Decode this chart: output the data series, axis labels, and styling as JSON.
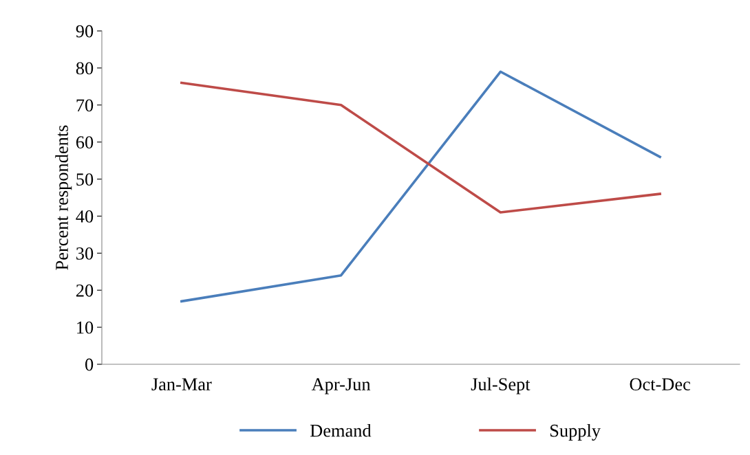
{
  "chart_data": {
    "type": "line",
    "ylabel": "Percent respondents",
    "categories": [
      "Jan-Mar",
      "Apr-Jun",
      "Jul-Sept",
      "Oct-Dec"
    ],
    "series": [
      {
        "name": "Demand",
        "color": "#4a7ebb",
        "values": [
          17,
          24,
          79,
          56
        ]
      },
      {
        "name": "Supply",
        "color": "#be4b48",
        "values": [
          76,
          70,
          41,
          46
        ]
      }
    ],
    "ylim": [
      0,
      90
    ],
    "yticks": [
      0,
      10,
      20,
      30,
      40,
      50,
      60,
      70,
      80,
      90
    ],
    "grid": false,
    "legend": "bottom",
    "marker": "none",
    "line_style": "solid"
  }
}
